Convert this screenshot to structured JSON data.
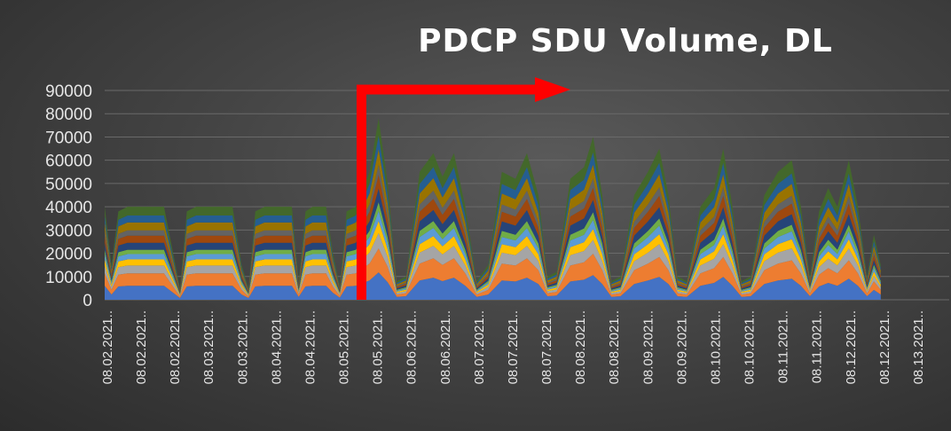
{
  "chart_data": {
    "type": "area",
    "stacked": true,
    "title": "PDCP SDU Volume, DL",
    "xlabel": "",
    "ylabel": "",
    "ylim": [
      0,
      90000
    ],
    "yticks": [
      0,
      10000,
      20000,
      30000,
      40000,
      50000,
      60000,
      70000,
      80000,
      90000
    ],
    "grid": true,
    "legend": "none",
    "x_tick_labels": [
      "08.02.2021..",
      "08.02.2021..",
      "08.02.2021..",
      "08.03.2021..",
      "08.03.2021..",
      "08.04.2021..",
      "08.04.2021..",
      "08.05.2021..",
      "08.05.2021..",
      "08.06.2021..",
      "08.06.2021..",
      "08.07.2021..",
      "08.07.2021..",
      "08.07.2021..",
      "08.08.2021..",
      "08.08.2021..",
      "08.09.2021..",
      "08.09.2021..",
      "08.10.2021..",
      "08.10.2021..",
      "08.11.2021..",
      "08.11.2021..",
      "08.12.2021..",
      "08.12.2021..",
      "08.13.2021.."
    ],
    "x_range": [
      0,
      37
    ],
    "series_colors": [
      "#4472c4",
      "#ed7d31",
      "#a5a5a5",
      "#ffc000",
      "#5b9bd5",
      "#70ad47",
      "#264478",
      "#9e480e",
      "#636363",
      "#997300",
      "#255e91",
      "#43682b"
    ],
    "total": [
      [
        0,
        40000
      ],
      [
        0.3,
        15000
      ],
      [
        0.6,
        38000
      ],
      [
        1.0,
        40000
      ],
      [
        2.6,
        40000
      ],
      [
        3.0,
        20000
      ],
      [
        3.3,
        5000
      ],
      [
        3.6,
        38000
      ],
      [
        4.0,
        40000
      ],
      [
        5.6,
        40000
      ],
      [
        6.0,
        15000
      ],
      [
        6.3,
        5000
      ],
      [
        6.6,
        38000
      ],
      [
        7.0,
        40000
      ],
      [
        8.2,
        40000
      ],
      [
        8.5,
        8000
      ],
      [
        8.8,
        38000
      ],
      [
        9.1,
        40000
      ],
      [
        9.7,
        40000
      ],
      [
        10.0,
        20000
      ],
      [
        10.3,
        6000
      ],
      [
        10.6,
        38000
      ],
      [
        11.0,
        40000
      ],
      [
        11.6,
        55000
      ],
      [
        12.0,
        78000
      ],
      [
        12.4,
        50000
      ],
      [
        12.8,
        8000
      ],
      [
        13.2,
        10000
      ],
      [
        13.8,
        55000
      ],
      [
        14.4,
        63000
      ],
      [
        14.8,
        53000
      ],
      [
        15.3,
        63000
      ],
      [
        15.8,
        40000
      ],
      [
        16.3,
        8000
      ],
      [
        16.8,
        15000
      ],
      [
        17.4,
        55000
      ],
      [
        18.0,
        52000
      ],
      [
        18.5,
        63000
      ],
      [
        19.0,
        45000
      ],
      [
        19.4,
        10000
      ],
      [
        19.8,
        12000
      ],
      [
        20.4,
        52000
      ],
      [
        21.0,
        57000
      ],
      [
        21.4,
        70000
      ],
      [
        21.8,
        45000
      ],
      [
        22.2,
        8000
      ],
      [
        22.6,
        10000
      ],
      [
        23.2,
        45000
      ],
      [
        23.8,
        55000
      ],
      [
        24.3,
        65000
      ],
      [
        24.7,
        45000
      ],
      [
        25.1,
        10000
      ],
      [
        25.5,
        8000
      ],
      [
        26.1,
        40000
      ],
      [
        26.7,
        48000
      ],
      [
        27.1,
        65000
      ],
      [
        27.5,
        40000
      ],
      [
        27.9,
        8000
      ],
      [
        28.3,
        10000
      ],
      [
        28.9,
        45000
      ],
      [
        29.5,
        55000
      ],
      [
        30.1,
        60000
      ],
      [
        30.5,
        40000
      ],
      [
        30.9,
        10000
      ],
      [
        31.3,
        38000
      ],
      [
        31.7,
        48000
      ],
      [
        32.1,
        40000
      ],
      [
        32.6,
        60000
      ],
      [
        33.0,
        40000
      ],
      [
        33.4,
        10000
      ],
      [
        33.7,
        28000
      ],
      [
        34.0,
        15000
      ]
    ]
  },
  "annotation": {
    "type": "arrow",
    "color": "#ff0000",
    "bend_x": 11.25
  }
}
